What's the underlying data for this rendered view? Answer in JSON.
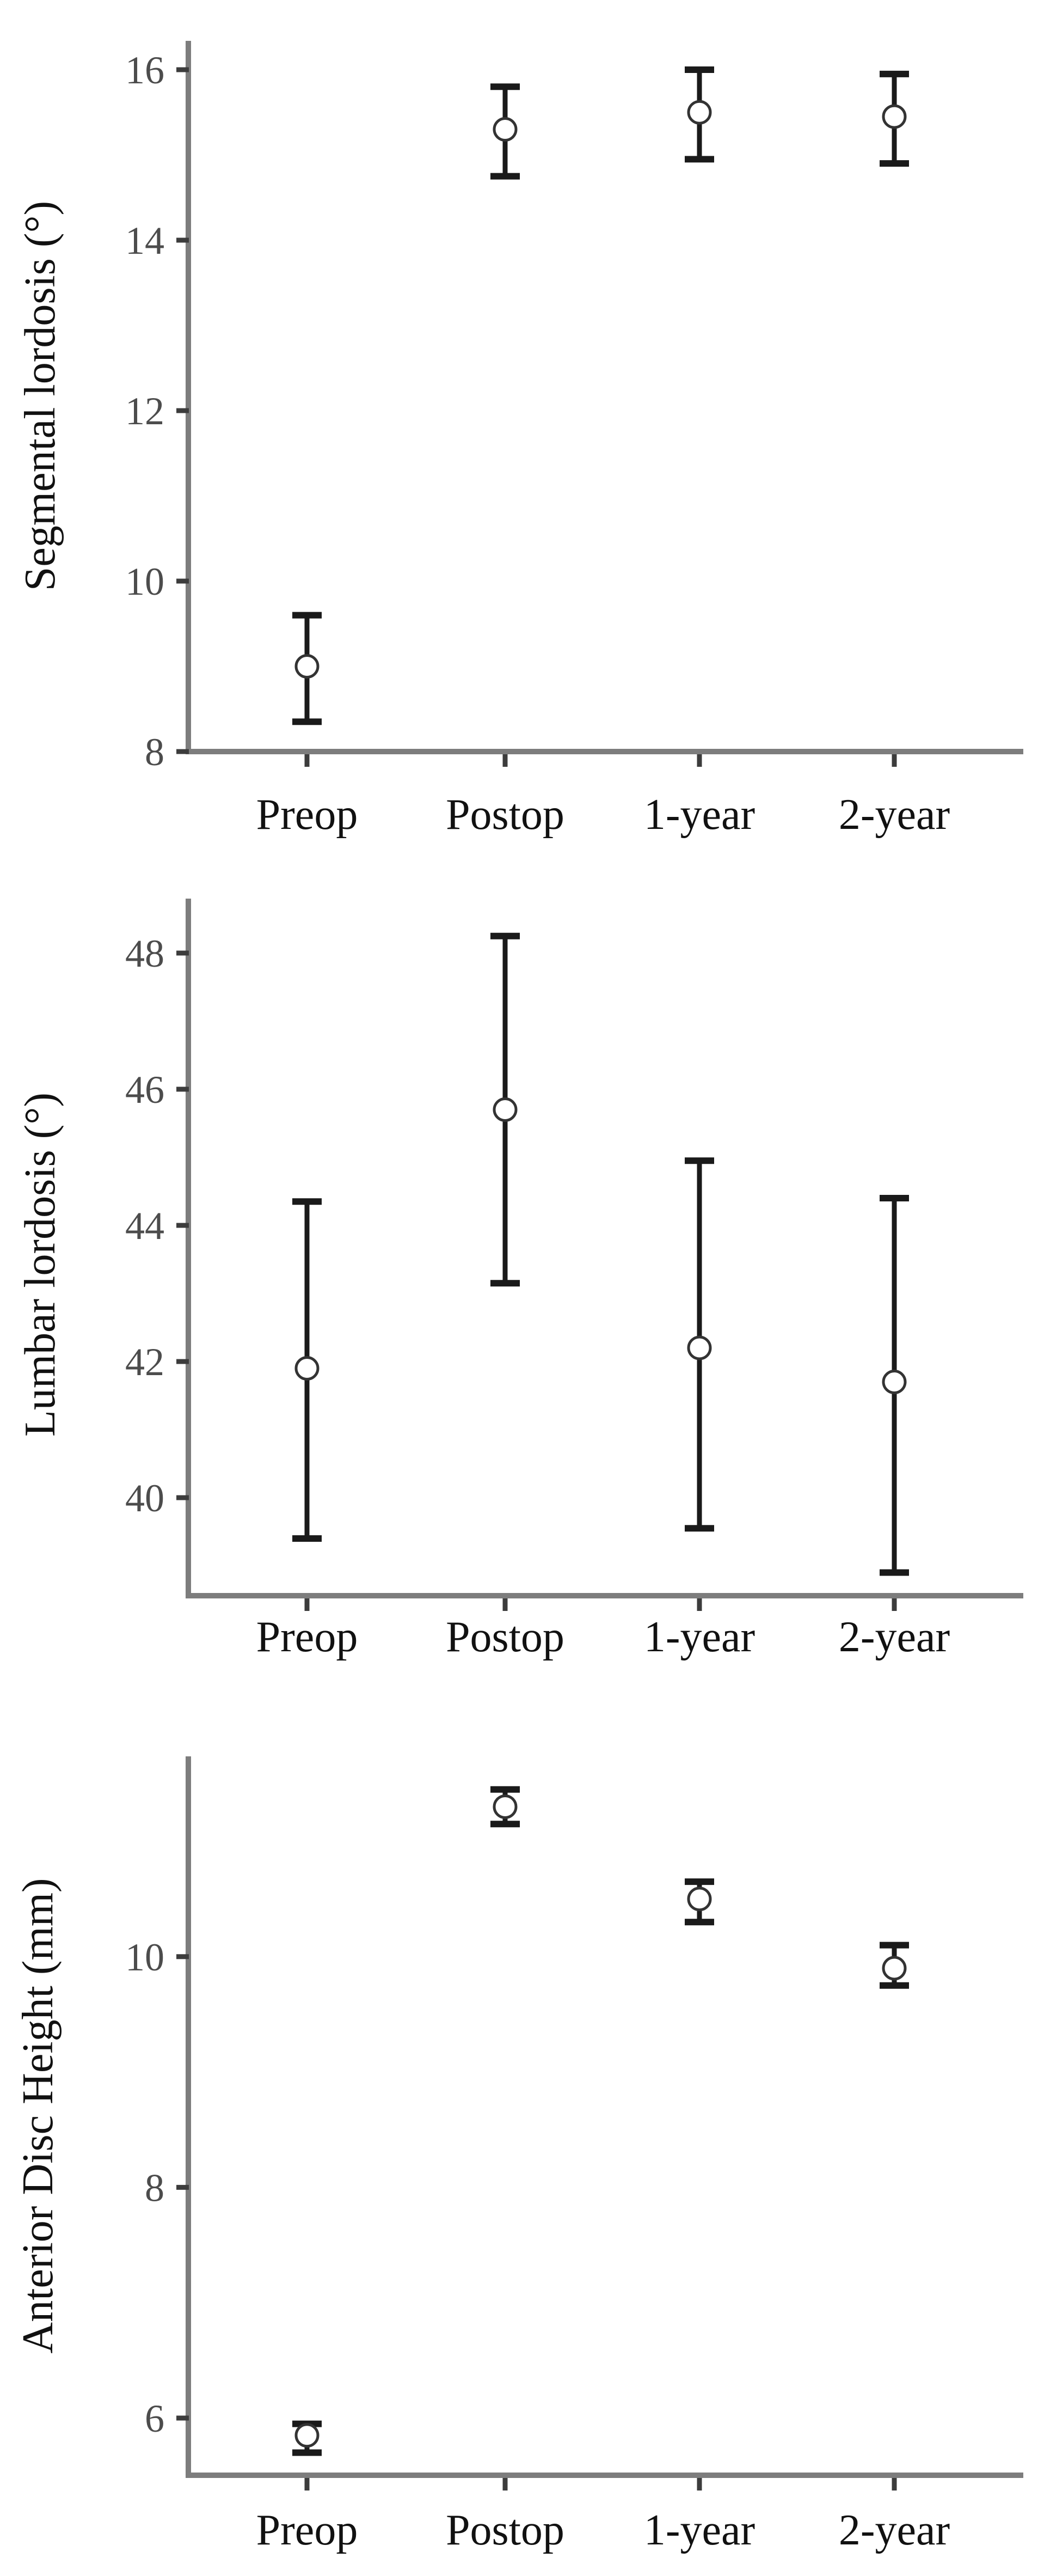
{
  "figure": {
    "description": "Three stacked mean and error-bar charts at four perioperative timepoints",
    "background_color": "#ffffff"
  },
  "colors": {
    "axis_spine": "#7d7d7d",
    "tick_mark": "#3c3c3c",
    "tick_label": "#4c4c4c",
    "category_label": "#111111",
    "axis_title": "#111111",
    "error_bar": "#1a1a1a",
    "marker_stroke": "#333333",
    "marker_fill": "#ffffff"
  },
  "chart_data": [
    {
      "type": "errorbar",
      "title": "",
      "xlabel": "",
      "ylabel": "Segmental lordosis (°)",
      "categories": [
        "Preop",
        "Postop",
        "1-year",
        "2-year"
      ],
      "yticks": [
        8,
        10,
        12,
        14,
        16
      ],
      "ylim": [
        8,
        16.35
      ],
      "grid": false,
      "legend": "none",
      "series": [
        {
          "name": "Segmental lordosis",
          "means": [
            9.0,
            15.3,
            15.5,
            15.45
          ],
          "lowers": [
            8.35,
            14.75,
            14.95,
            14.9
          ],
          "uppers": [
            9.6,
            15.8,
            16.0,
            15.95
          ]
        }
      ]
    },
    {
      "type": "errorbar",
      "title": "",
      "xlabel": "",
      "ylabel": "Lumbar lordosis (°)",
      "categories": [
        "Preop",
        "Postop",
        "1-year",
        "2-year"
      ],
      "yticks": [
        40,
        42,
        44,
        46,
        48
      ],
      "ylim": [
        38.55,
        48.8
      ],
      "grid": false,
      "legend": "none",
      "series": [
        {
          "name": "Lumbar lordosis",
          "means": [
            41.9,
            45.7,
            42.2,
            41.7
          ],
          "lowers": [
            39.4,
            43.15,
            39.55,
            38.9
          ],
          "uppers": [
            44.35,
            48.25,
            44.95,
            44.4
          ]
        }
      ]
    },
    {
      "type": "errorbar",
      "title": "",
      "xlabel": "",
      "ylabel": "Anterior Disc Height (mm)",
      "categories": [
        "Preop",
        "Postop",
        "1-year",
        "2-year"
      ],
      "yticks": [
        6,
        8,
        10
      ],
      "ylim": [
        5.5,
        11.75
      ],
      "grid": false,
      "legend": "none",
      "series": [
        {
          "name": "Anterior Disc Height",
          "means": [
            5.85,
            11.3,
            10.5,
            9.9
          ],
          "lowers": [
            5.7,
            11.15,
            10.3,
            9.75
          ],
          "uppers": [
            5.95,
            11.45,
            10.65,
            10.1
          ]
        }
      ]
    }
  ]
}
